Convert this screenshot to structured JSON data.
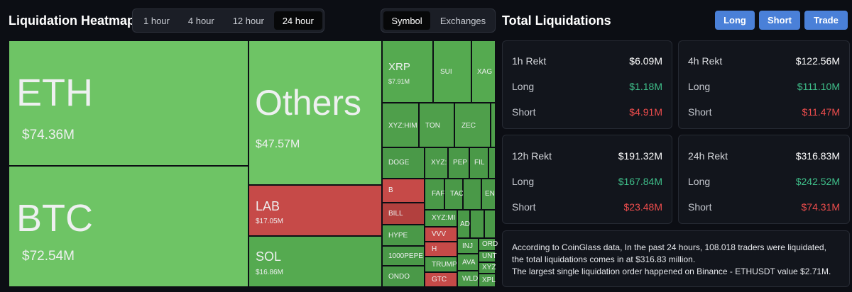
{
  "heatmap": {
    "title": "Liquidation Heatmap",
    "time_tabs": [
      {
        "label": "1 hour",
        "active": false
      },
      {
        "label": "4 hour",
        "active": false
      },
      {
        "label": "12 hour",
        "active": false
      },
      {
        "label": "24 hour",
        "active": true
      }
    ],
    "view_tabs": [
      {
        "label": "Symbol",
        "active": true
      },
      {
        "label": "Exchanges",
        "active": false
      }
    ],
    "tiles": {
      "eth": {
        "name": "ETH",
        "value": "$74.36M"
      },
      "btc": {
        "name": "BTC",
        "value": "$72.54M"
      },
      "others": {
        "name": "Others",
        "value": "$47.57M"
      },
      "lab": {
        "name": "LAB",
        "value": "$17.05M"
      },
      "sol": {
        "name": "SOL",
        "value": "$16.86M"
      },
      "xrp": {
        "name": "XRP",
        "value": "$7.91M"
      },
      "sui": {
        "name": "SUI"
      },
      "xag": {
        "name": "XAG"
      },
      "xyzhim": {
        "name": "XYZ:HIM"
      },
      "ton": {
        "name": "TON"
      },
      "zec": {
        "name": "ZEC"
      },
      "doge": {
        "name": "DOGE"
      },
      "xyz1": {
        "name": "XYZ:"
      },
      "pep": {
        "name": "PEP"
      },
      "fil": {
        "name": "FIL"
      },
      "b": {
        "name": "B"
      },
      "far": {
        "name": "FAF"
      },
      "tac": {
        "name": "TAC"
      },
      "ena": {
        "name": "EN"
      },
      "bill": {
        "name": "BILL"
      },
      "xyzmi": {
        "name": "XYZ:MI"
      },
      "ad": {
        "name": "AD"
      },
      "hype": {
        "name": "HYPE"
      },
      "vvv": {
        "name": "VVV"
      },
      "inj": {
        "name": "INJ"
      },
      "ord": {
        "name": "ORD"
      },
      "pepe": {
        "name": "1000PEPE"
      },
      "h": {
        "name": "H"
      },
      "unt": {
        "name": "UNT"
      },
      "trump": {
        "name": "TRUMP"
      },
      "ava": {
        "name": "AVA"
      },
      "xyz2": {
        "name": "XYZ"
      },
      "ondo": {
        "name": "ONDO"
      },
      "gtc": {
        "name": "GTC"
      },
      "wld": {
        "name": "WLD"
      },
      "xpl": {
        "name": "XPL"
      }
    }
  },
  "totals": {
    "title": "Total Liquidations",
    "buttons": {
      "long": "Long",
      "short": "Short",
      "trade": "Trade"
    },
    "cards": {
      "h1": {
        "title": "1h Rekt",
        "total": "$6.09M",
        "long_label": "Long",
        "long": "$1.18M",
        "short_label": "Short",
        "short": "$4.91M"
      },
      "h4": {
        "title": "4h Rekt",
        "total": "$122.56M",
        "long_label": "Long",
        "long": "$111.10M",
        "short_label": "Short",
        "short": "$11.47M"
      },
      "h12": {
        "title": "12h Rekt",
        "total": "$191.32M",
        "long_label": "Long",
        "long": "$167.84M",
        "short_label": "Short",
        "short": "$23.48M"
      },
      "h24": {
        "title": "24h Rekt",
        "total": "$316.83M",
        "long_label": "Long",
        "long": "$242.52M",
        "short_label": "Short",
        "short": "$74.31M"
      }
    },
    "note": {
      "line1": "According to CoinGlass data, In the past 24 hours, 108.018 traders were liquidated, the total liquidations comes in at $316.83 million.",
      "line2": "The largest single liquidation order happened on Binance - ETHUSDT value $2.71M."
    }
  },
  "colors": {
    "tile_green_bright": "#6ec465",
    "tile_green_mid": "#55aa50",
    "tile_green_dark": "#3f8f44",
    "tile_red": "#c64a48",
    "tile_red_dark": "#b2403e",
    "accent_blue": "#4a80d8",
    "long_green": "#3fbf8a",
    "short_red": "#ef4d4d"
  }
}
